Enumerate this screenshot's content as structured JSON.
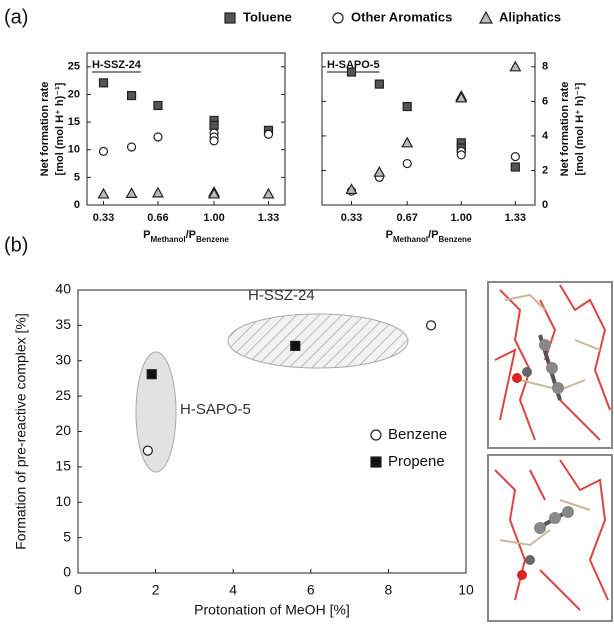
{
  "panels": [
    "(a)",
    "(b)"
  ],
  "chart_data": [
    {
      "type": "scatter",
      "title": "H-SSZ-24",
      "ylabel": [
        "Net formation rate",
        "[mol (mol H⁺ h)⁻¹]"
      ],
      "xlabel": [
        "P",
        "Methanol",
        "/P",
        "Benzene"
      ],
      "xlim": [
        0.23,
        1.43
      ],
      "xticks": [
        0.33,
        0.66,
        {
          "value": 1,
          "label": "1.00"
        },
        1.33
      ],
      "ylim": [
        0,
        27.5
      ],
      "yticks": [
        0,
        5,
        10,
        15,
        20,
        25
      ],
      "series": [
        {
          "name": "Toluene",
          "color": "#555555",
          "marker": "square",
          "x": [
            0.33,
            0.5,
            0.66,
            1,
            1,
            1.33
          ],
          "values": [
            22.1,
            19.8,
            18,
            15.3,
            14.4,
            13.5
          ]
        },
        {
          "name": "Other Aromatics",
          "color": "#ffffff",
          "marker": "circle",
          "x": [
            0.33,
            0.5,
            0.66,
            1,
            1,
            1,
            1.33
          ],
          "values": [
            9.7,
            10.5,
            12.3,
            13,
            12.3,
            11.6,
            12.8
          ]
        },
        {
          "name": "Aliphatics",
          "color": "#bbbbbb",
          "marker": "triangle",
          "x": [
            0.33,
            0.5,
            0.66,
            1,
            1,
            1.33
          ],
          "values": [
            2,
            2.1,
            2.2,
            2.3,
            2,
            2
          ]
        }
      ]
    },
    {
      "type": "scatter",
      "title": "H-SAPO-5",
      "y2label": [
        "Net formation rate",
        "[mol (mol H⁺ h)⁻¹]"
      ],
      "xlabel": [
        "P",
        "Methanol",
        "/P",
        "Benzene"
      ],
      "xlim": [
        0.15,
        1.45
      ],
      "xticks": [
        0.33,
        0.67,
        {
          "value": 1,
          "label": "1.00"
        },
        1.33
      ],
      "y2lim": [
        0,
        8.8
      ],
      "y2ticks": [
        0,
        2,
        4,
        6,
        8
      ],
      "series": [
        {
          "color": "#555555",
          "marker": "square",
          "axis": "y2",
          "x": [
            0.33,
            0.5,
            0.67,
            1,
            1,
            1.33
          ],
          "values": [
            7.7,
            7,
            5.7,
            3.6,
            3.3,
            2.2
          ]
        },
        {
          "color": "#ffffff",
          "marker": "circle",
          "axis": "y2",
          "x": [
            0.33,
            0.5,
            0.67,
            1,
            1,
            1.33
          ],
          "values": [
            0.8,
            1.6,
            2.4,
            3.1,
            2.9,
            2.8
          ]
        },
        {
          "color": "#bbbbbb",
          "marker": "triangle",
          "axis": "y2",
          "x": [
            0.33,
            0.5,
            0.67,
            1,
            1,
            1.33
          ],
          "values": [
            0.9,
            1.9,
            3.6,
            6.3,
            6.2,
            8
          ]
        }
      ]
    },
    {
      "type": "scatter",
      "ylabel": "Formation of pre-reactive complex [%]",
      "xlabel": "Protonation of MeOH [%]",
      "xlim": [
        0,
        10
      ],
      "xticks": [
        0,
        2,
        4,
        6,
        8,
        10
      ],
      "ylim": [
        0,
        40
      ],
      "yticks": [
        0,
        5,
        10,
        15,
        20,
        25,
        30,
        35,
        40
      ],
      "annotations": [
        "H-SSZ-24",
        "H-SAPO-5"
      ],
      "series": [
        {
          "name": "Benzene",
          "color": "#ffffff",
          "marker": "circle",
          "x": [
            1.8,
            9.1
          ],
          "values": [
            17.3,
            35
          ]
        },
        {
          "name": "Propene",
          "color": "#111111",
          "marker": "square",
          "x": [
            1.9,
            5.6
          ],
          "values": [
            28.1,
            32.1
          ]
        }
      ]
    }
  ]
}
